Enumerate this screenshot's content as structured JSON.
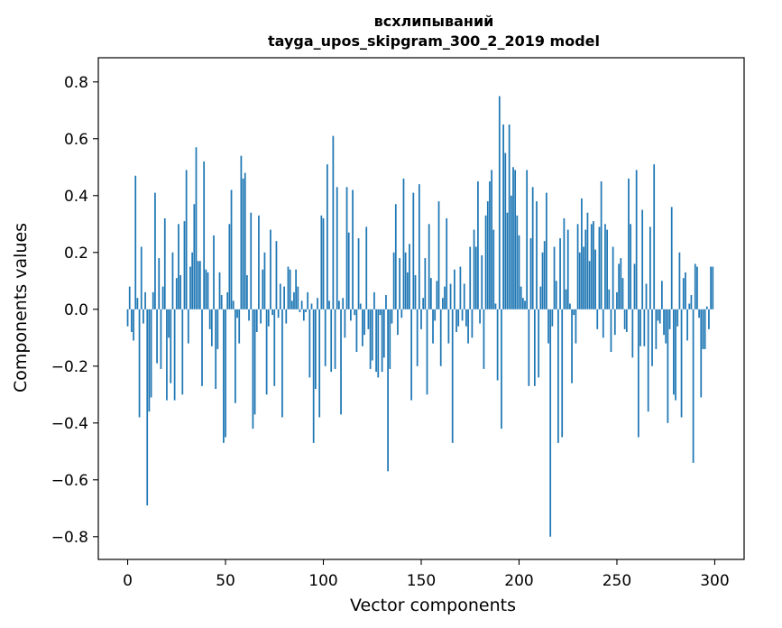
{
  "chart_data": {
    "type": "bar",
    "title_line1": "всхлипываний",
    "title_line2": "tayga_upos_skipgram_300_2_2019 model",
    "xlabel": "Vector components",
    "ylabel": "Components values",
    "xlim": [
      -15,
      315
    ],
    "ylim": [
      -0.88,
      0.885
    ],
    "xticks": [
      0,
      50,
      100,
      150,
      200,
      250,
      300
    ],
    "xtick_labels": [
      "0",
      "50",
      "100",
      "150",
      "200",
      "250",
      "300"
    ],
    "yticks": [
      -0.8,
      -0.6,
      -0.4,
      -0.2,
      0.0,
      0.2,
      0.4,
      0.6,
      0.8
    ],
    "ytick_labels": [
      "−0.8",
      "−0.6",
      "−0.4",
      "−0.2",
      "0.0",
      "0.2",
      "0.4",
      "0.6",
      "0.8"
    ],
    "grid": false,
    "bar_color": "#1f77b4",
    "values": [
      -0.06,
      0.08,
      -0.08,
      -0.11,
      0.47,
      0.04,
      -0.38,
      0.22,
      -0.05,
      0.06,
      -0.69,
      -0.36,
      -0.31,
      0.06,
      0.41,
      -0.19,
      0.18,
      -0.21,
      0.08,
      0.32,
      -0.32,
      -0.1,
      -0.26,
      0.2,
      -0.32,
      0.11,
      0.3,
      0.12,
      -0.3,
      0.31,
      0.49,
      -0.12,
      0.15,
      0.2,
      0.37,
      0.57,
      0.17,
      0.17,
      -0.27,
      0.52,
      0.14,
      0.13,
      -0.07,
      -0.13,
      0.26,
      -0.28,
      -0.14,
      0.13,
      0.05,
      -0.47,
      -0.45,
      0.06,
      0.3,
      0.42,
      0.03,
      -0.33,
      -0.03,
      -0.12,
      0.54,
      0.46,
      0.48,
      0.12,
      -0.04,
      0.34,
      -0.42,
      -0.37,
      -0.08,
      0.33,
      -0.05,
      0.14,
      0.2,
      -0.3,
      -0.06,
      0.28,
      -0.02,
      -0.27,
      0.24,
      -0.03,
      0.09,
      -0.38,
      0.08,
      -0.05,
      0.15,
      0.14,
      0.03,
      0.06,
      0.14,
      0.08,
      -0.01,
      0.03,
      -0.04,
      -0.01,
      0.06,
      -0.24,
      0.02,
      -0.47,
      -0.28,
      0.04,
      -0.38,
      0.33,
      0.32,
      -0.2,
      0.51,
      0.03,
      -0.22,
      0.61,
      -0.21,
      0.43,
      0.03,
      -0.37,
      0.04,
      -0.1,
      0.43,
      0.27,
      -0.04,
      0.42,
      -0.02,
      -0.15,
      0.25,
      0.02,
      -0.13,
      -0.09,
      0.29,
      -0.07,
      -0.21,
      -0.18,
      0.06,
      -0.22,
      -0.24,
      -0.02,
      -0.22,
      -0.17,
      0.05,
      -0.57,
      -0.21,
      -0.05,
      0.2,
      0.37,
      -0.09,
      0.18,
      -0.03,
      0.46,
      0.2,
      0.13,
      0.23,
      -0.32,
      0.41,
      0.12,
      -0.2,
      0.44,
      -0.07,
      0.04,
      0.18,
      -0.3,
      0.3,
      0.11,
      -0.12,
      -0.04,
      0.1,
      0.38,
      -0.2,
      0.04,
      0.08,
      0.32,
      -0.12,
      0.09,
      -0.47,
      0.14,
      -0.08,
      -0.06,
      0.15,
      -0.04,
      0.09,
      -0.06,
      -0.12,
      0.22,
      -0.1,
      0.28,
      0.22,
      0.45,
      -0.05,
      0.19,
      -0.21,
      0.33,
      0.38,
      0.45,
      0.49,
      0.28,
      0.02,
      -0.25,
      0.75,
      -0.42,
      0.65,
      0.55,
      0.34,
      0.65,
      0.4,
      0.5,
      0.49,
      0.33,
      0.26,
      0.08,
      0.04,
      0.03,
      0.49,
      -0.27,
      0.25,
      0.43,
      -0.27,
      0.38,
      -0.24,
      0.08,
      0.2,
      0.24,
      0.41,
      -0.12,
      -0.8,
      -0.06,
      0.22,
      0.1,
      -0.47,
      0.25,
      -0.45,
      0.32,
      0.07,
      0.28,
      0.02,
      -0.26,
      -0.02,
      -0.12,
      0.3,
      0.2,
      0.39,
      0.22,
      0.28,
      0.34,
      0.17,
      0.3,
      0.31,
      0.21,
      -0.07,
      0.29,
      0.45,
      -0.1,
      0.3,
      0.28,
      0.07,
      -0.15,
      0.22,
      -0.09,
      0.06,
      0.16,
      0.18,
      0.11,
      -0.07,
      -0.08,
      0.46,
      0.3,
      -0.17,
      0.16,
      0.49,
      -0.45,
      -0.13,
      0.35,
      -0.13,
      0.09,
      -0.36,
      0.29,
      -0.2,
      0.51,
      -0.14,
      -0.04,
      -0.05,
      0.1,
      -0.09,
      -0.12,
      -0.4,
      -0.07,
      0.36,
      -0.3,
      -0.32,
      -0.06,
      0.2,
      -0.38,
      0.11,
      0.13,
      -0.11,
      0.02,
      0.05,
      -0.54,
      0.16,
      0.15,
      -0.03,
      -0.31,
      -0.14,
      -0.14,
      0.01,
      -0.07,
      0.15,
      0.15
    ]
  }
}
